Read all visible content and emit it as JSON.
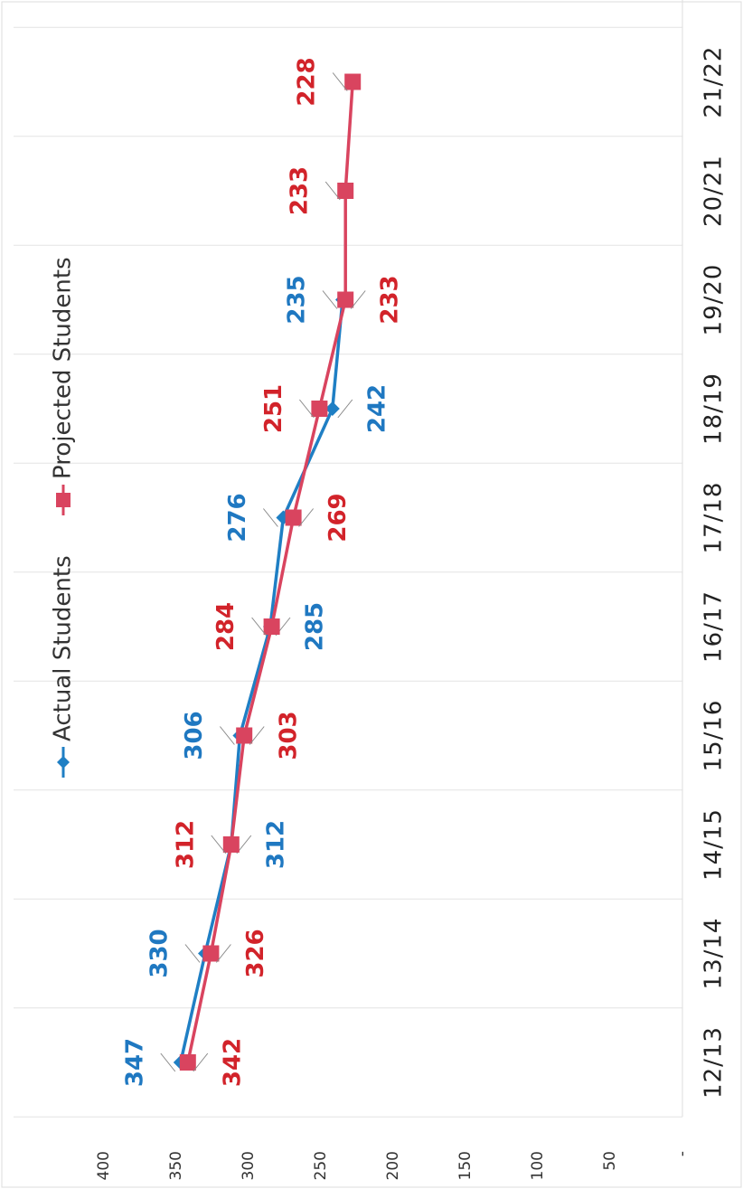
{
  "chart_data": {
    "type": "line",
    "categories": [
      "12/13",
      "13/14",
      "14/15",
      "15/16",
      "16/17",
      "17/18",
      "18/19",
      "19/20",
      "20/21",
      "21/22"
    ],
    "series": [
      {
        "name": "Actual Students",
        "color": "#1f7fc4",
        "marker": "diamond",
        "values": [
          347,
          330,
          312,
          306,
          285,
          276,
          242,
          235,
          null,
          null
        ]
      },
      {
        "name": "Projected Students",
        "color": "#d9445f",
        "marker": "square",
        "values": [
          342,
          326,
          312,
          303,
          284,
          269,
          251,
          233,
          233,
          228
        ]
      }
    ],
    "ylim": [
      0,
      400
    ],
    "yticks": [
      {
        "value": 0,
        "label": "-"
      },
      50,
      100,
      150,
      200,
      250,
      300,
      350,
      400
    ],
    "grid": true,
    "legend": "top"
  }
}
